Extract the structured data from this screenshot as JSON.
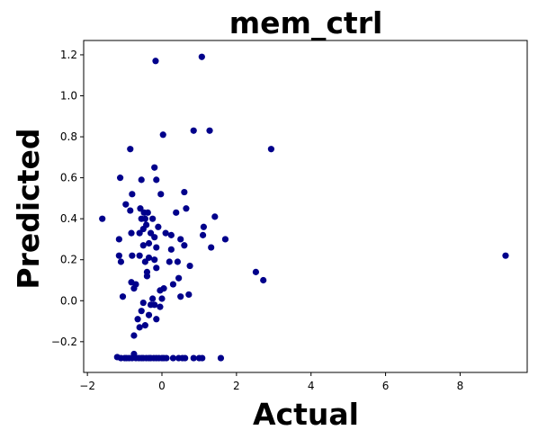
{
  "chart_data": {
    "type": "scatter",
    "title": "mem_ctrl",
    "xlabel": "Actual",
    "ylabel": "Predicted",
    "xlim": [
      -2.1,
      9.8
    ],
    "ylim": [
      -0.35,
      1.27
    ],
    "xticks": [
      -2,
      0,
      2,
      4,
      6,
      8
    ],
    "xtick_labels": [
      "−2",
      "0",
      "2",
      "4",
      "6",
      "8"
    ],
    "yticks": [
      -0.2,
      0.0,
      0.2,
      0.4,
      0.6,
      0.8,
      1.0,
      1.2
    ],
    "ytick_labels": [
      "−0.2",
      "0.0",
      "0.2",
      "0.4",
      "0.6",
      "0.8",
      "1.0",
      "1.2"
    ],
    "grid": false,
    "marker_color": "#00008b",
    "series": [
      {
        "points": [
          [
            -0.17,
            1.17
          ],
          [
            1.07,
            1.19
          ],
          [
            0.03,
            0.81
          ],
          [
            0.85,
            0.83
          ],
          [
            1.28,
            0.83
          ],
          [
            2.93,
            0.74
          ],
          [
            -0.85,
            0.74
          ],
          [
            -1.12,
            0.6
          ],
          [
            -0.55,
            0.59
          ],
          [
            -0.2,
            0.65
          ],
          [
            -0.15,
            0.59
          ],
          [
            -0.97,
            0.47
          ],
          [
            -0.8,
            0.52
          ],
          [
            -0.03,
            0.52
          ],
          [
            0.6,
            0.53
          ],
          [
            -1.6,
            0.4
          ],
          [
            -0.85,
            0.44
          ],
          [
            -0.58,
            0.45
          ],
          [
            -0.48,
            0.43
          ],
          [
            -0.38,
            0.43
          ],
          [
            -0.45,
            0.4
          ],
          [
            -0.25,
            0.4
          ],
          [
            -0.3,
            0.33
          ],
          [
            -0.2,
            0.31
          ],
          [
            -0.1,
            0.36
          ],
          [
            0.38,
            0.43
          ],
          [
            0.65,
            0.45
          ],
          [
            1.42,
            0.41
          ],
          [
            1.12,
            0.36
          ],
          [
            -0.55,
            0.4
          ],
          [
            -0.42,
            0.37
          ],
          [
            -0.5,
            0.35
          ],
          [
            -0.82,
            0.33
          ],
          [
            -0.6,
            0.33
          ],
          [
            0.1,
            0.33
          ],
          [
            0.25,
            0.32
          ],
          [
            0.5,
            0.3
          ],
          [
            0.6,
            0.27
          ],
          [
            1.1,
            0.32
          ],
          [
            1.32,
            0.26
          ],
          [
            1.7,
            0.3
          ],
          [
            0.25,
            0.25
          ],
          [
            -1.15,
            0.3
          ],
          [
            -1.15,
            0.22
          ],
          [
            -1.1,
            0.19
          ],
          [
            -0.5,
            0.27
          ],
          [
            -0.35,
            0.28
          ],
          [
            -0.15,
            0.26
          ],
          [
            -0.8,
            0.22
          ],
          [
            -0.6,
            0.22
          ],
          [
            -0.35,
            0.21
          ],
          [
            -0.2,
            0.2
          ],
          [
            -0.45,
            0.19
          ],
          [
            0.2,
            0.19
          ],
          [
            0.42,
            0.19
          ],
          [
            0.75,
            0.17
          ],
          [
            -0.15,
            0.16
          ],
          [
            -0.4,
            0.14
          ],
          [
            -0.4,
            0.12
          ],
          [
            0.45,
            0.11
          ],
          [
            2.52,
            0.14
          ],
          [
            2.72,
            0.1
          ],
          [
            9.22,
            0.22
          ],
          [
            -0.82,
            0.09
          ],
          [
            -0.7,
            0.08
          ],
          [
            -0.75,
            0.06
          ],
          [
            -1.05,
            0.02
          ],
          [
            -0.05,
            0.05
          ],
          [
            0.05,
            0.06
          ],
          [
            0.3,
            0.08
          ],
          [
            0.72,
            0.03
          ],
          [
            0.5,
            0.02
          ],
          [
            -0.25,
            0.01
          ],
          [
            0.0,
            0.01
          ],
          [
            -0.5,
            -0.01
          ],
          [
            -0.3,
            -0.02
          ],
          [
            -0.2,
            -0.02
          ],
          [
            -0.05,
            -0.03
          ],
          [
            -0.55,
            -0.05
          ],
          [
            -0.65,
            -0.09
          ],
          [
            -0.35,
            -0.07
          ],
          [
            -0.15,
            -0.09
          ],
          [
            -0.6,
            -0.13
          ],
          [
            -0.45,
            -0.12
          ],
          [
            -0.75,
            -0.17
          ],
          [
            -0.75,
            -0.26
          ],
          [
            -1.2,
            -0.275
          ],
          [
            -1.1,
            -0.28
          ],
          [
            -1.0,
            -0.28
          ],
          [
            -0.95,
            -0.28
          ],
          [
            -0.88,
            -0.28
          ],
          [
            -0.8,
            -0.28
          ],
          [
            -0.75,
            -0.27
          ],
          [
            -0.7,
            -0.28
          ],
          [
            -0.62,
            -0.28
          ],
          [
            -0.55,
            -0.28
          ],
          [
            -0.5,
            -0.28
          ],
          [
            -0.42,
            -0.28
          ],
          [
            -0.35,
            -0.28
          ],
          [
            -0.3,
            -0.28
          ],
          [
            -0.22,
            -0.28
          ],
          [
            -0.15,
            -0.28
          ],
          [
            -0.08,
            -0.28
          ],
          [
            0.0,
            -0.28
          ],
          [
            0.05,
            -0.28
          ],
          [
            0.12,
            -0.28
          ],
          [
            0.3,
            -0.28
          ],
          [
            0.45,
            -0.28
          ],
          [
            0.55,
            -0.28
          ],
          [
            0.62,
            -0.28
          ],
          [
            0.85,
            -0.28
          ],
          [
            1.0,
            -0.28
          ],
          [
            1.08,
            -0.28
          ],
          [
            1.58,
            -0.28
          ]
        ]
      }
    ]
  }
}
